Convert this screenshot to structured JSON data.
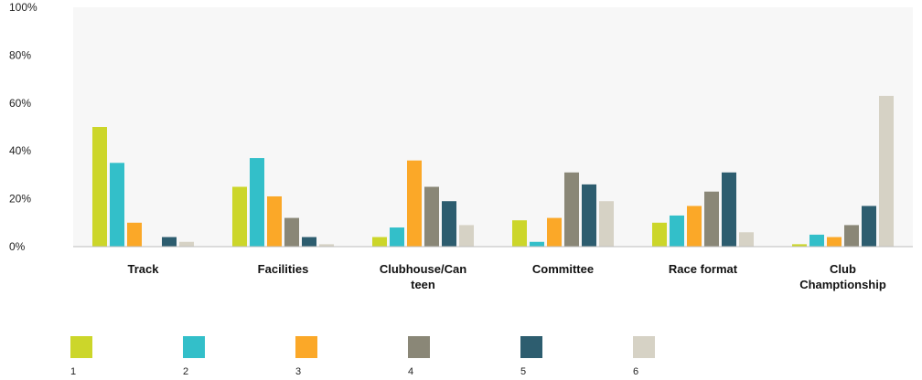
{
  "chart_data": {
    "type": "bar",
    "categories": [
      [
        "Track"
      ],
      [
        "Facilities"
      ],
      [
        "Clubhouse/Can",
        "teen"
      ],
      [
        "Committee"
      ],
      [
        "Race format"
      ],
      [
        "Club",
        "Champtionship"
      ]
    ],
    "series": [
      {
        "name": "1",
        "color": "#ccd62a",
        "values": [
          50,
          25,
          4,
          11,
          10,
          1
        ]
      },
      {
        "name": "2",
        "color": "#33bfc9",
        "values": [
          35,
          37,
          8,
          2,
          13,
          5
        ]
      },
      {
        "name": "3",
        "color": "#fba828",
        "values": [
          10,
          21,
          36,
          12,
          17,
          4
        ]
      },
      {
        "name": "4",
        "color": "#8a8777",
        "values": [
          0,
          12,
          25,
          31,
          23,
          9
        ]
      },
      {
        "name": "5",
        "color": "#2d5d6f",
        "values": [
          4,
          4,
          19,
          26,
          31,
          17
        ]
      },
      {
        "name": "6",
        "color": "#d6d2c5",
        "values": [
          2,
          1,
          9,
          19,
          6,
          63
        ]
      }
    ],
    "yticks": [
      "0%",
      "20%",
      "40%",
      "60%",
      "80%",
      "100%"
    ],
    "ylim": [
      0,
      100
    ],
    "grid": false,
    "legend": "bottom"
  }
}
